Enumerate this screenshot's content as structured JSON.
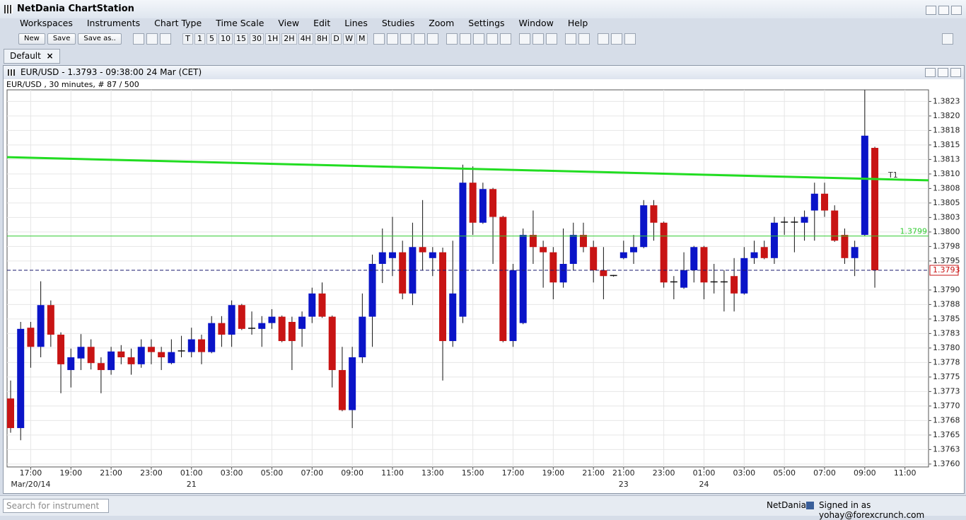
{
  "window_title": "NetDania ChartStation",
  "menu": [
    "Workspaces",
    "Instruments",
    "Chart Type",
    "Time Scale",
    "View",
    "Edit",
    "Lines",
    "Studies",
    "Zoom",
    "Settings",
    "Window",
    "Help"
  ],
  "toolbar": {
    "file_buttons": [
      "New",
      "Save",
      "Save as.."
    ],
    "timeframes": [
      "T",
      "1",
      "5",
      "10",
      "15",
      "30",
      "1H",
      "2H",
      "4H",
      "8H",
      "D",
      "W",
      "M"
    ]
  },
  "tab": "Default",
  "chart_window": {
    "title": "EUR/USD - 1.3793 - 09:38:00  24 Mar (CET)",
    "info": "EUR/USD , 30 minutes, # 87 / 500"
  },
  "status_bar": {
    "search_placeholder": "Search for instrument",
    "brand": "NetDania",
    "signed_in": "Signed in as yohay@forexcrunch.com"
  },
  "chart_data": {
    "type": "candlestick",
    "up_color": "#0a14c8",
    "down_color": "#c81414",
    "grid": true,
    "categories": [
      null,
      null,
      "17:00",
      null,
      null,
      null,
      "19:00",
      null,
      null,
      null,
      "21:00",
      null,
      null,
      null,
      "23:00",
      null,
      null,
      null,
      "01:00",
      null,
      null,
      null,
      "03:00",
      null,
      null,
      null,
      "05:00",
      null,
      null,
      null,
      "07:00",
      null,
      null,
      null,
      "09:00",
      null,
      null,
      null,
      "11:00",
      null,
      null,
      null,
      "13:00",
      null,
      null,
      null,
      "15:00",
      null,
      null,
      null,
      "17:00",
      null,
      null,
      null,
      "19:00",
      null,
      null,
      null,
      "21:00",
      null,
      null,
      "21:00",
      null,
      null,
      null,
      "23:00",
      null,
      null,
      null,
      "01:00",
      null,
      null,
      null,
      "03:00",
      null,
      null,
      null,
      "05:00",
      null,
      null,
      null,
      "07:00",
      null,
      null,
      null,
      "09:00",
      null,
      null,
      null,
      "11:00"
    ],
    "date_labels": [
      null,
      null,
      "Mar/20/14",
      null,
      null,
      null,
      null,
      null,
      null,
      null,
      null,
      null,
      null,
      null,
      null,
      null,
      null,
      null,
      "21",
      null,
      null,
      null,
      null,
      null,
      null,
      null,
      null,
      null,
      null,
      null,
      null,
      null,
      null,
      null,
      null,
      null,
      null,
      null,
      null,
      null,
      null,
      null,
      null,
      null,
      null,
      null,
      null,
      null,
      null,
      null,
      null,
      null,
      null,
      null,
      null,
      null,
      null,
      null,
      null,
      null,
      null,
      "23",
      null,
      null,
      null,
      null,
      null,
      null,
      null,
      "24",
      null,
      null,
      null,
      null,
      null,
      null,
      null,
      null,
      null,
      null,
      null,
      null,
      null,
      null,
      null,
      null,
      null,
      null,
      null,
      null
    ],
    "open": [
      1.37713,
      1.37662,
      1.37835,
      1.37802,
      1.37874,
      1.37823,
      1.37762,
      1.37782,
      1.37802,
      1.37774,
      1.37762,
      1.37794,
      1.37784,
      1.37772,
      1.37802,
      1.37793,
      1.37774,
      1.37794,
      1.37793,
      1.37815,
      1.37793,
      1.37843,
      1.37823,
      1.37874,
      1.37833,
      1.37833,
      1.37843,
      1.37854,
      1.37845,
      1.37833,
      1.37854,
      1.37894,
      1.37854,
      1.37762,
      1.37693,
      1.37784,
      1.37854,
      1.37945,
      1.37955,
      1.37965,
      1.37894,
      1.37974,
      1.37955,
      1.37965,
      1.37812,
      1.37854,
      1.38085,
      1.38016,
      1.38074,
      1.38026,
      1.37812,
      1.37843,
      1.37995,
      1.37974,
      1.37965,
      1.37913,
      1.37945,
      1.37995,
      1.37974,
      1.37934,
      1.37924,
      1.37955,
      1.37965,
      1.37974,
      1.38046,
      1.38016,
      1.37913,
      1.37904,
      1.37934,
      1.37974,
      1.37913,
      1.37913,
      1.37924,
      1.37894,
      1.37955,
      1.37974,
      1.37955,
      1.38016,
      1.38016,
      1.38016,
      1.38037,
      1.38066,
      1.38037,
      1.37995,
      1.37955,
      1.37995,
      1.38145,
      null,
      null,
      null
    ],
    "high": [
      1.37744,
      1.37845,
      1.37845,
      1.37915,
      1.37882,
      1.37827,
      1.37799,
      1.37824,
      1.37815,
      1.37784,
      1.37802,
      1.37805,
      1.37799,
      1.37815,
      1.37815,
      1.37802,
      1.37815,
      1.37821,
      1.37835,
      1.37823,
      1.37855,
      1.37855,
      1.37882,
      1.37876,
      1.37863,
      1.37855,
      1.37867,
      1.37856,
      1.37854,
      1.37863,
      1.37904,
      1.37913,
      1.37856,
      1.37802,
      1.37802,
      1.37894,
      1.37961,
      1.38006,
      1.38026,
      1.37985,
      1.38016,
      1.38055,
      1.37974,
      1.37973,
      1.37985,
      1.38116,
      1.38113,
      1.38085,
      1.38076,
      1.38028,
      1.37945,
      1.38006,
      1.38037,
      1.37985,
      1.37974,
      1.38006,
      1.38016,
      1.38016,
      1.37985,
      1.37974,
      1.37926,
      1.37985,
      1.37995,
      1.38055,
      1.38055,
      1.38018,
      1.37924,
      1.37965,
      1.37976,
      1.37976,
      1.37945,
      1.37934,
      1.37955,
      1.37974,
      1.37985,
      1.37985,
      1.38026,
      1.38026,
      1.38026,
      1.38037,
      1.38085,
      1.38085,
      1.38046,
      1.38006,
      1.37985,
      1.38245,
      1.38147,
      null,
      null,
      null
    ],
    "low": [
      1.37654,
      1.37641,
      1.37766,
      1.37784,
      1.37802,
      1.37722,
      1.37732,
      1.37762,
      1.37763,
      1.37722,
      1.37754,
      1.37772,
      1.37754,
      1.37766,
      1.37772,
      1.37762,
      1.37772,
      1.37784,
      1.37784,
      1.37772,
      1.37791,
      1.37802,
      1.37802,
      1.37831,
      1.37823,
      1.37802,
      1.37833,
      1.3781,
      1.37762,
      1.37802,
      1.37843,
      1.37852,
      1.37732,
      1.37691,
      1.37662,
      1.37774,
      1.37802,
      1.37912,
      1.37924,
      1.37884,
      1.37874,
      1.37934,
      1.37924,
      1.37744,
      1.37802,
      1.37843,
      1.37995,
      1.38014,
      1.37945,
      1.3781,
      1.37802,
      1.37841,
      1.37945,
      1.37904,
      1.37884,
      1.37904,
      1.37934,
      1.37965,
      1.37913,
      1.37884,
      1.37923,
      1.37953,
      1.37945,
      1.37972,
      1.37985,
      1.37904,
      1.37884,
      1.37902,
      1.37913,
      1.37884,
      1.37894,
      1.37863,
      1.37863,
      1.37892,
      1.37945,
      1.37953,
      1.37945,
      1.37995,
      1.37965,
      1.37985,
      1.37985,
      1.38026,
      1.37983,
      1.37945,
      1.37924,
      1.37993,
      1.37904,
      null,
      null,
      null
    ],
    "close": [
      1.37662,
      1.37833,
      1.37802,
      1.37874,
      1.37823,
      1.37772,
      1.37784,
      1.37802,
      1.37774,
      1.37762,
      1.37794,
      1.37784,
      1.37772,
      1.37802,
      1.37793,
      1.37784,
      1.37793,
      1.37795,
      1.37815,
      1.37793,
      1.37843,
      1.37823,
      1.37874,
      1.37833,
      1.37834,
      1.37843,
      1.37854,
      1.37812,
      1.37812,
      1.37854,
      1.37894,
      1.37854,
      1.37762,
      1.37693,
      1.37784,
      1.37854,
      1.37945,
      1.37965,
      1.37965,
      1.37894,
      1.37974,
      1.37965,
      1.37965,
      1.37812,
      1.37894,
      1.38085,
      1.38016,
      1.38074,
      1.38026,
      1.37812,
      1.37934,
      1.37995,
      1.37974,
      1.37965,
      1.37913,
      1.37945,
      1.37995,
      1.37974,
      1.37934,
      1.37924,
      1.37925,
      1.37965,
      1.37974,
      1.38046,
      1.38016,
      1.37913,
      1.37914,
      1.37934,
      1.37974,
      1.37913,
      1.37914,
      1.37914,
      1.37894,
      1.37955,
      1.37965,
      1.37955,
      1.38016,
      1.38017,
      1.38017,
      1.38026,
      1.38066,
      1.38037,
      1.37985,
      1.37955,
      1.37974,
      1.38166,
      1.37934,
      null,
      null,
      null
    ],
    "ylim": [
      1.37595,
      1.38245
    ],
    "yticks": [
      {
        "value": 1.376,
        "label": "1.3760"
      },
      {
        "value": 1.37625,
        "label": "1.3763"
      },
      {
        "value": 1.3765,
        "label": "1.3765"
      },
      {
        "value": 1.37675,
        "label": "1.3768"
      },
      {
        "value": 1.377,
        "label": "1.3770"
      },
      {
        "value": 1.37725,
        "label": "1.3773"
      },
      {
        "value": 1.3775,
        "label": "1.3775"
      },
      {
        "value": 1.37775,
        "label": "1.3778"
      },
      {
        "value": 1.378,
        "label": "1.3780"
      },
      {
        "value": 1.37825,
        "label": "1.3783"
      },
      {
        "value": 1.3785,
        "label": "1.3785"
      },
      {
        "value": 1.37875,
        "label": "1.3788"
      },
      {
        "value": 1.379,
        "label": "1.3790"
      },
      {
        "value": 1.3795,
        "label": "1.3795"
      },
      {
        "value": 1.37975,
        "label": "1.3798"
      },
      {
        "value": 1.38,
        "label": "1.3800"
      },
      {
        "value": 1.38025,
        "label": "1.3803"
      },
      {
        "value": 1.3805,
        "label": "1.3805"
      },
      {
        "value": 1.38075,
        "label": "1.3808"
      },
      {
        "value": 1.381,
        "label": "1.3810"
      },
      {
        "value": 1.38125,
        "label": "1.3813"
      },
      {
        "value": 1.3815,
        "label": "1.3815"
      },
      {
        "value": 1.38175,
        "label": "1.3818"
      },
      {
        "value": 1.382,
        "label": "1.3820"
      },
      {
        "value": 1.38225,
        "label": "1.3823"
      }
    ],
    "ma_line": {
      "label": "T1",
      "color": "#22dd22",
      "values": [
        1.38129,
        1.38089
      ]
    },
    "level_line": {
      "value": 1.37993,
      "label": "1.3799",
      "color": "#33cc33"
    },
    "current_price": {
      "value": 1.37934,
      "label": "1.3793"
    }
  }
}
